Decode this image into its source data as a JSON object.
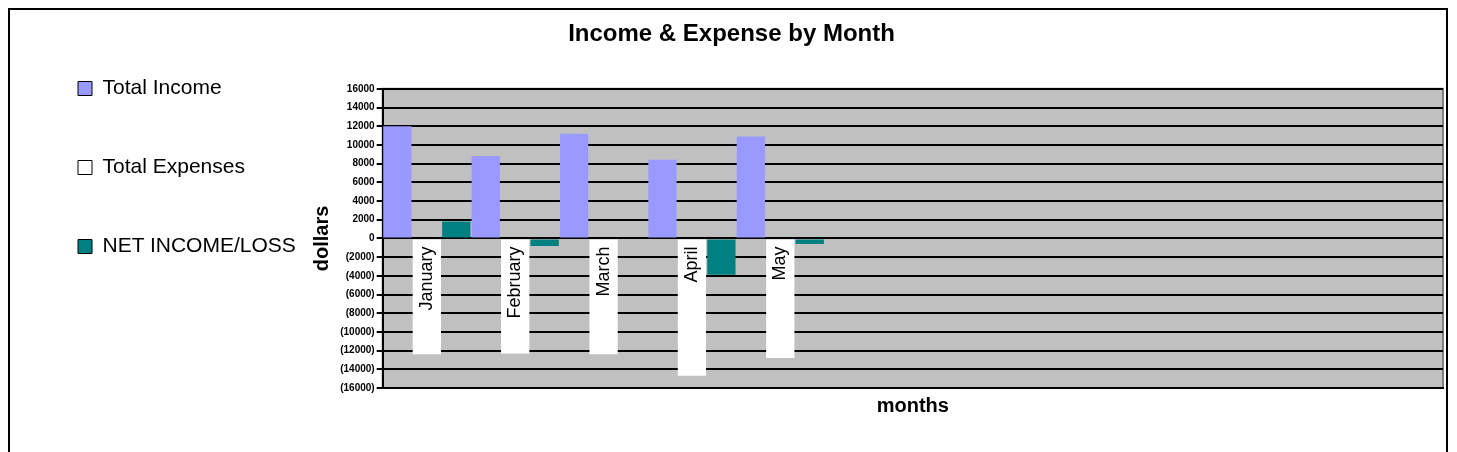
{
  "chart_data": {
    "type": "bar",
    "title": "Income & Expense by Month",
    "xlabel": "months",
    "ylabel": "dollars",
    "categories": [
      "January",
      "February",
      "March",
      "April",
      "May",
      null,
      null,
      null,
      null,
      null,
      null,
      null
    ],
    "series": [
      {
        "name": "Total Income",
        "color": "#9999ff",
        "values": [
          12000,
          8800,
          11200,
          8400,
          10900,
          null,
          null,
          null,
          null,
          null,
          null,
          null
        ]
      },
      {
        "name": "Total Expenses",
        "color": "#ffffff",
        "values": [
          -12400,
          -12300,
          -12400,
          -14700,
          -12800,
          null,
          null,
          null,
          null,
          null,
          null,
          null
        ]
      },
      {
        "name": "NET INCOME/LOSS",
        "color": "#008080",
        "values": [
          1800,
          -800,
          null,
          -3900,
          -600,
          null,
          null,
          null,
          null,
          null,
          null,
          null
        ]
      }
    ],
    "ylim": [
      -16000,
      16000
    ],
    "yticks": [
      {
        "value": -16000,
        "label": "(16000)"
      },
      {
        "value": -14000,
        "label": "(14000)"
      },
      {
        "value": -12000,
        "label": "(12000)"
      },
      {
        "value": -10000,
        "label": "(10000)"
      },
      {
        "value": -8000,
        "label": "(8000)"
      },
      {
        "value": -6000,
        "label": "(6000)"
      },
      {
        "value": -4000,
        "label": "(4000)"
      },
      {
        "value": -2000,
        "label": "(2000)"
      },
      0,
      2000,
      4000,
      6000,
      8000,
      10000,
      12000,
      14000,
      16000
    ],
    "grid": "y",
    "legend": "left"
  }
}
